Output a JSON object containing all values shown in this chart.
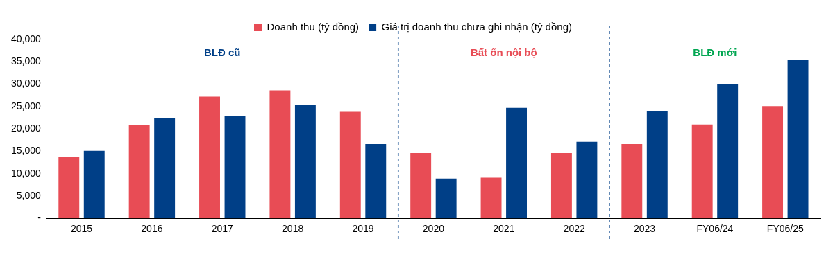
{
  "chart_data": {
    "type": "bar",
    "categories": [
      "2015",
      "2016",
      "2017",
      "2018",
      "2019",
      "2020",
      "2021",
      "2022",
      "2023",
      "FY06/24",
      "FY06/25"
    ],
    "series": [
      {
        "name": "Doanh thu (tỷ đồng)",
        "color": "#e84c55",
        "values": [
          13700,
          20900,
          27200,
          28600,
          23800,
          14600,
          9100,
          14600,
          16600,
          21000,
          25100
        ]
      },
      {
        "name": "Giá trị doanh thu chưa ghi nhận (tỷ đồng)",
        "color": "#003f87",
        "values": [
          15100,
          22500,
          22900,
          25400,
          16600,
          8900,
          24700,
          17100,
          24000,
          30100,
          35400
        ]
      }
    ],
    "ylim": [
      0,
      40000
    ],
    "yticks": [
      {
        "value": 0,
        "label": "-"
      },
      {
        "value": 5000,
        "label": "5,000"
      },
      {
        "value": 10000,
        "label": "10,000"
      },
      {
        "value": 15000,
        "label": "15,000"
      },
      {
        "value": 20000,
        "label": "20,000"
      },
      {
        "value": 25000,
        "label": "25,000"
      },
      {
        "value": 30000,
        "label": "30,000"
      },
      {
        "value": 35000,
        "label": "35,000"
      },
      {
        "value": 40000,
        "label": "40,000"
      }
    ],
    "grid": false,
    "legend": "top",
    "annotations": [
      "BLĐ cũ",
      "Bất ổn nội bộ",
      "BLĐ mới"
    ]
  }
}
